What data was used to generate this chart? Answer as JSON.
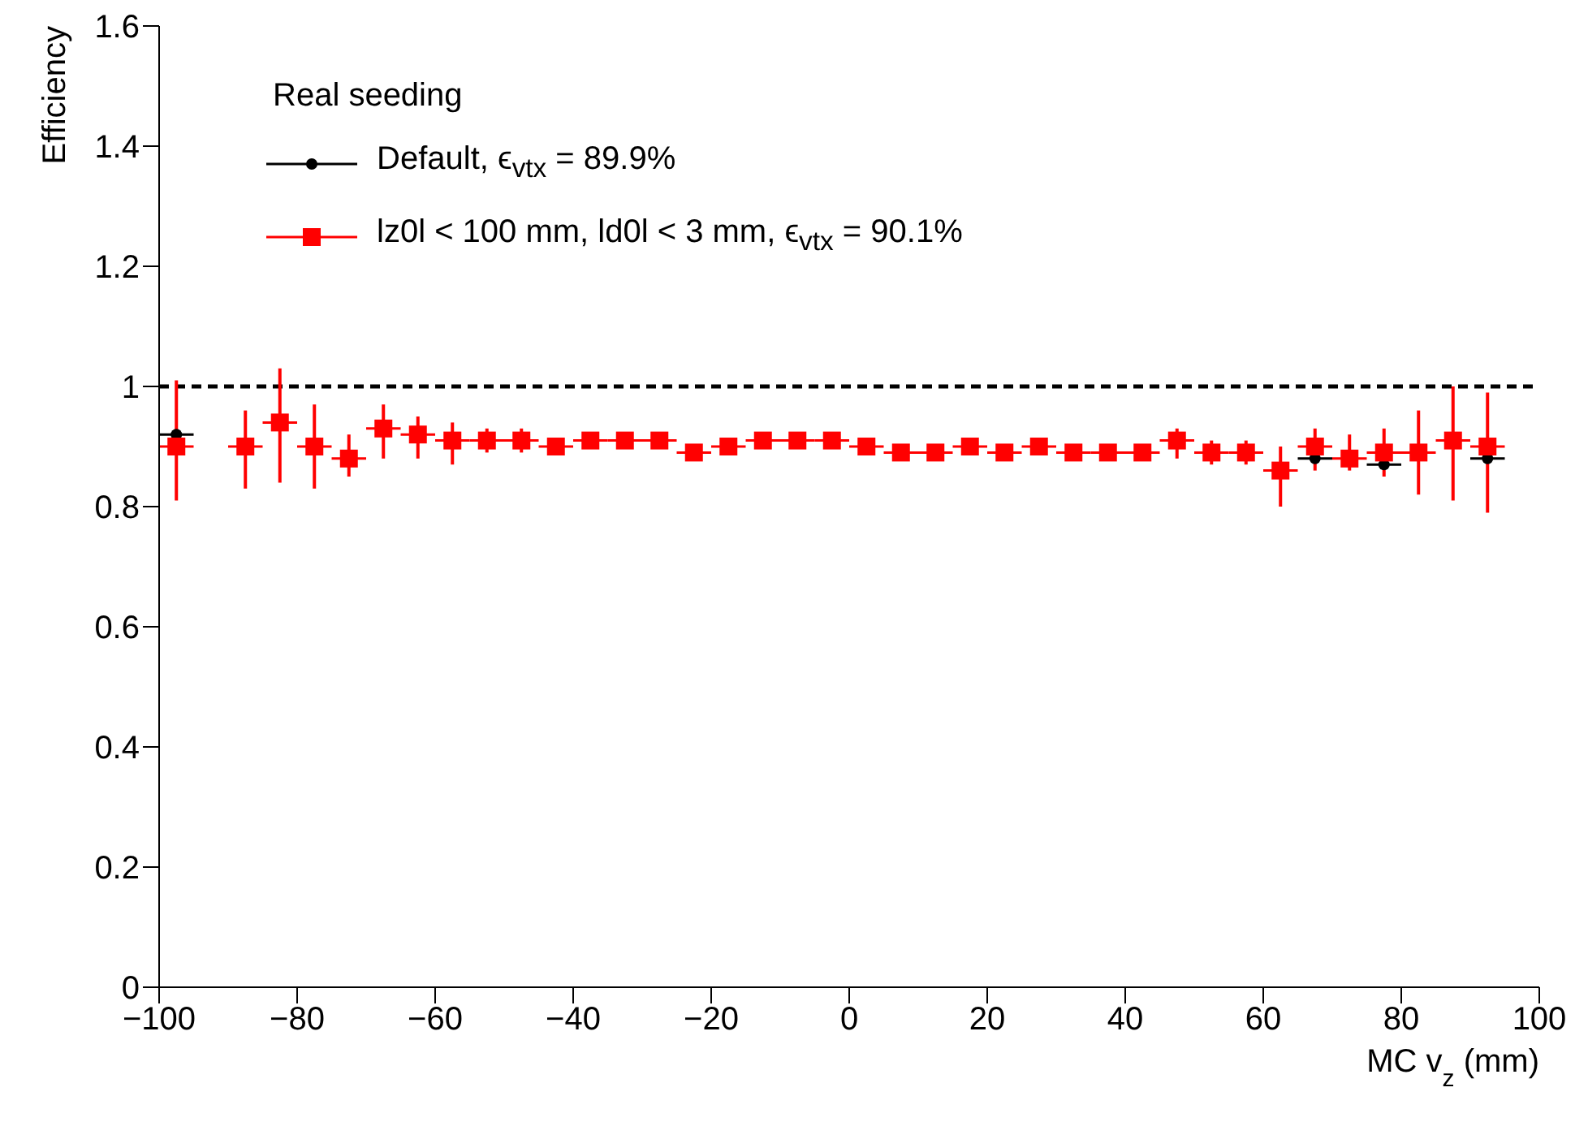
{
  "chart_data": {
    "type": "scatter",
    "xlabel": "MC v$_{z}$ (mm)",
    "ylabel": "Efficiency",
    "legend_title": "Real seeding",
    "legend": "top left",
    "xlim": [
      -100,
      100
    ],
    "xticks": [
      -100,
      -80,
      -60,
      -40,
      -20,
      0,
      20,
      40,
      60,
      80,
      100
    ],
    "ylim": [
      0,
      1.6
    ],
    "yticks": [
      0,
      0.2,
      0.4,
      0.6,
      0.8,
      1,
      1.2,
      1.4,
      1.6
    ],
    "grid": false,
    "x": [
      -97.5,
      -87.5,
      -82.5,
      -77.5,
      -72.5,
      -67.5,
      -62.5,
      -57.5,
      -52.5,
      -47.5,
      -42.5,
      -37.5,
      -32.5,
      -27.5,
      -22.5,
      -17.5,
      -12.5,
      -7.5,
      -2.5,
      2.5,
      7.5,
      12.5,
      17.5,
      22.5,
      27.5,
      32.5,
      37.5,
      42.5,
      47.5,
      52.5,
      57.5,
      62.5,
      67.5,
      72.5,
      77.5,
      82.5,
      87.5,
      92.5
    ],
    "ref_lines": [
      {
        "axis": "y",
        "value": 1,
        "color": "#000000",
        "line_style": "dashed"
      }
    ],
    "series": [
      {
        "name": "Default, ϵ$_{vtx}$ = 89.9%",
        "color": "#000000",
        "marker": "circle",
        "values": [
          0.92,
          null,
          null,
          null,
          null,
          null,
          null,
          null,
          null,
          null,
          null,
          null,
          null,
          null,
          null,
          null,
          null,
          null,
          null,
          null,
          null,
          null,
          null,
          null,
          null,
          null,
          null,
          null,
          null,
          null,
          null,
          null,
          0.88,
          null,
          0.87,
          null,
          null,
          0.88
        ],
        "xerrors": [
          2.5,
          null,
          null,
          null,
          null,
          null,
          null,
          null,
          null,
          null,
          null,
          null,
          null,
          null,
          null,
          null,
          null,
          null,
          null,
          null,
          null,
          null,
          null,
          null,
          null,
          null,
          null,
          null,
          null,
          null,
          null,
          null,
          2.5,
          null,
          2.5,
          null,
          null,
          2.5
        ]
      },
      {
        "name": "lz0l < 100 mm, ld0l < 3 mm, ϵ$_{vtx}$ = 90.1%",
        "color": "#ff0000",
        "marker": "square",
        "values": [
          0.9,
          0.9,
          0.94,
          0.9,
          0.88,
          0.93,
          0.92,
          0.91,
          0.91,
          0.91,
          0.9,
          0.91,
          0.91,
          0.91,
          0.89,
          0.9,
          0.91,
          0.91,
          0.91,
          0.9,
          0.89,
          0.89,
          0.9,
          0.89,
          0.9,
          0.89,
          0.89,
          0.89,
          0.91,
          0.89,
          0.89,
          0.86,
          0.9,
          0.88,
          0.89,
          0.89,
          0.91,
          0.9
        ],
        "errors": [
          [
            0.81,
            1.01
          ],
          [
            0.83,
            0.96
          ],
          [
            0.84,
            1.03
          ],
          [
            0.83,
            0.97
          ],
          [
            0.85,
            0.92
          ],
          [
            0.88,
            0.97
          ],
          [
            0.88,
            0.95
          ],
          [
            0.87,
            0.94
          ],
          0.02,
          0.02,
          0.01,
          0.01,
          0.01,
          0.01,
          0.01,
          0.01,
          0.01,
          0.01,
          0.01,
          0.01,
          0.01,
          0.01,
          0.01,
          0.01,
          0.01,
          0.01,
          0.01,
          0.01,
          [
            0.88,
            0.93
          ],
          0.02,
          0.02,
          [
            0.8,
            0.9
          ],
          [
            0.86,
            0.93
          ],
          [
            0.86,
            0.92
          ],
          [
            0.85,
            0.93
          ],
          [
            0.82,
            0.96
          ],
          [
            0.81,
            1.0
          ],
          [
            0.79,
            0.99
          ]
        ],
        "xerrors": [
          2.5,
          2.5,
          2.5,
          2.5,
          2.5,
          2.5,
          2.5,
          2.5,
          2.5,
          2.5,
          2.5,
          2.5,
          2.5,
          2.5,
          2.5,
          2.5,
          2.5,
          2.5,
          2.5,
          2.5,
          2.5,
          2.5,
          2.5,
          2.5,
          2.5,
          2.5,
          2.5,
          2.5,
          2.5,
          2.5,
          2.5,
          2.5,
          2.5,
          2.5,
          2.5,
          2.5,
          2.5,
          2.5
        ]
      }
    ]
  }
}
